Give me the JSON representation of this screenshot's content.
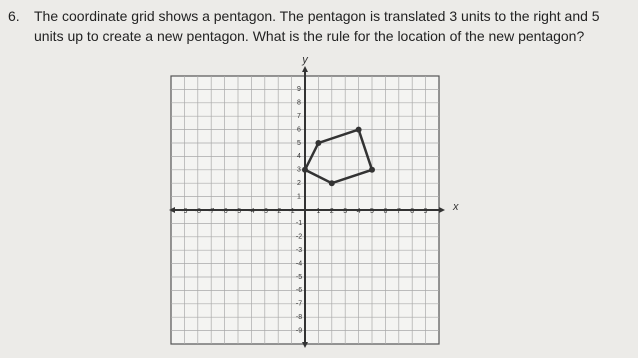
{
  "question": {
    "number": "6.",
    "lines": [
      "The coordinate grid shows a pentagon. The pentagon is translated 3 units to the right and 5",
      "units up to create a new pentagon.  What is the rule for the location of the new pentagon?"
    ]
  },
  "grid": {
    "x_label": "x",
    "y_label": "y",
    "range": [
      -10,
      10
    ],
    "ticks": [
      -9,
      -8,
      -7,
      -6,
      -5,
      -4,
      -3,
      -2,
      -1,
      1,
      2,
      3,
      4,
      5,
      6,
      7,
      8,
      9
    ],
    "vertices": [
      {
        "x": 0,
        "y": 3
      },
      {
        "x": 1,
        "y": 5
      },
      {
        "x": 4,
        "y": 6
      },
      {
        "x": 5,
        "y": 3
      },
      {
        "x": 2,
        "y": 2
      }
    ]
  }
}
